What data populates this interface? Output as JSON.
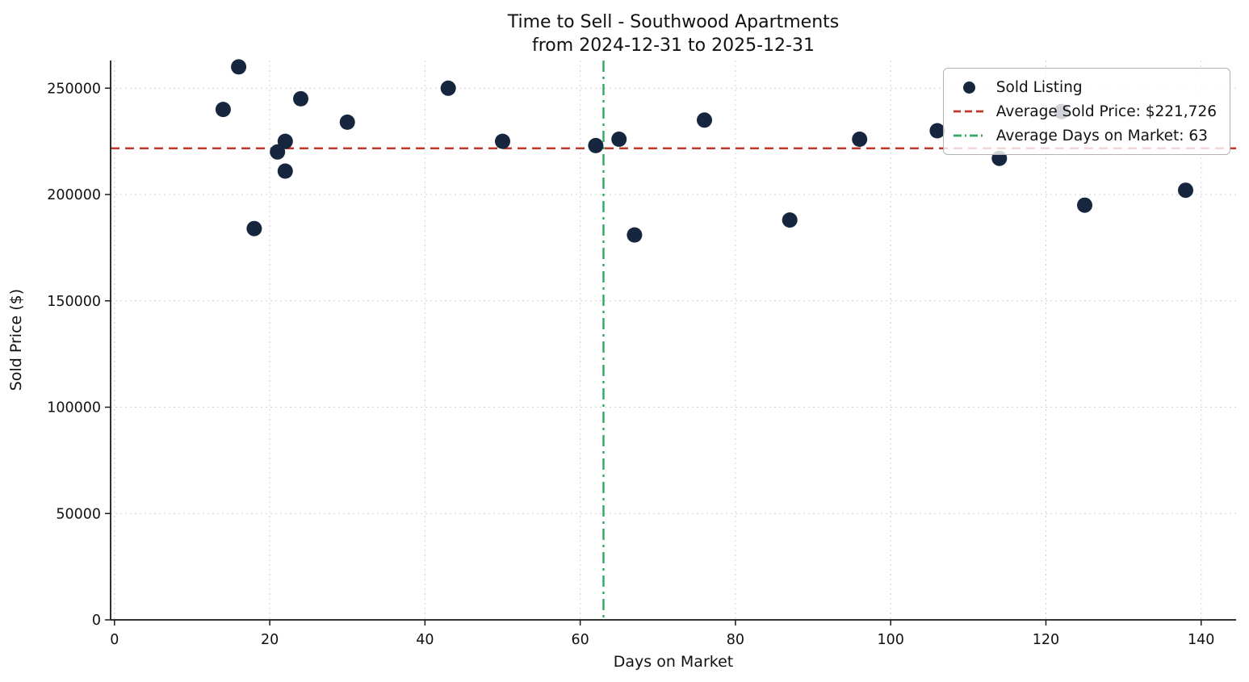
{
  "chart_data": {
    "type": "scatter",
    "title": "Time to Sell - Southwood Apartments",
    "subtitle": "from 2024-12-31 to 2025-12-31",
    "xlabel": "Days on Market",
    "ylabel": "Sold Price ($)",
    "xlim": [
      -0.5,
      144.5
    ],
    "ylim": [
      0,
      263000
    ],
    "xticks": [
      0,
      20,
      40,
      60,
      80,
      100,
      120,
      140
    ],
    "yticks": [
      0,
      50000,
      100000,
      150000,
      200000,
      250000
    ],
    "grid": true,
    "legend_position": "upper right",
    "series": [
      {
        "name": "Sold Listing",
        "points": [
          [
            14,
            240000
          ],
          [
            16,
            260000
          ],
          [
            18,
            184000
          ],
          [
            21,
            220000
          ],
          [
            22,
            225000
          ],
          [
            22,
            211000
          ],
          [
            24,
            245000
          ],
          [
            30,
            234000
          ],
          [
            43,
            250000
          ],
          [
            50,
            225000
          ],
          [
            62,
            223000
          ],
          [
            65,
            226000
          ],
          [
            67,
            181000
          ],
          [
            76,
            235000
          ],
          [
            87,
            188000
          ],
          [
            96,
            226000
          ],
          [
            106,
            230000
          ],
          [
            114,
            217000
          ],
          [
            122,
            239000
          ],
          [
            125,
            195000
          ],
          [
            138,
            202000
          ]
        ]
      }
    ],
    "avg_sold_price": 221726,
    "avg_days_on_market": 63,
    "legend": {
      "items": [
        {
          "label": "Sold Listing",
          "marker": "dot"
        },
        {
          "label": "Average Sold Price: $221,726",
          "marker": "dashed-line"
        },
        {
          "label": "Average Days on Market: 63",
          "marker": "dashdot-line"
        }
      ]
    },
    "colors": {
      "point": "#16263f",
      "avg_price_line": "#c0392b",
      "avg_days_line": "#2fa95f",
      "grid": "#cbcbcb"
    }
  }
}
